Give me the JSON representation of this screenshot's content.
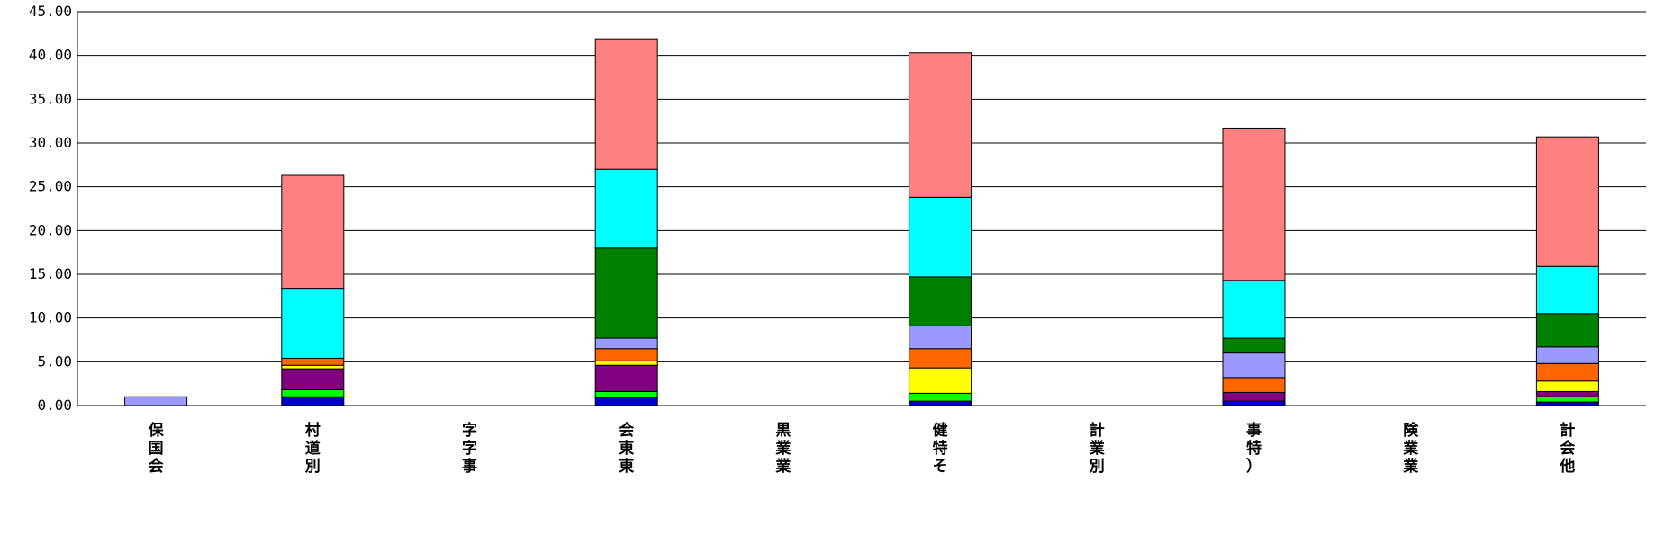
{
  "chart_data": {
    "type": "bar",
    "stacked": true,
    "title": "",
    "xlabel": "",
    "ylabel": "",
    "ylim": [
      0,
      45
    ],
    "yticks": [
      "0.00",
      "5.00",
      "10.00",
      "15.00",
      "20.00",
      "25.00",
      "30.00",
      "35.00",
      "40.00",
      "45.00"
    ],
    "grid": "horizontal",
    "legend": "none",
    "categories": [
      "保国会",
      "村道別",
      "字字事",
      "会東東",
      "黒業業",
      "健特そ",
      "計業別",
      "事特）",
      "険業業",
      "計会他"
    ],
    "series": [
      {
        "color": "#0000CC",
        "values": [
          0,
          1.0,
          0,
          0.9,
          0,
          0.5,
          0,
          0.5,
          0,
          0.4
        ]
      },
      {
        "color": "#00FF00",
        "values": [
          0,
          0.8,
          0,
          0.7,
          0,
          0.9,
          0,
          0,
          0,
          0.6
        ]
      },
      {
        "color": "#800080",
        "values": [
          0,
          2.4,
          0,
          3.0,
          0,
          0,
          0,
          1.0,
          0,
          0.6
        ]
      },
      {
        "color": "#FFFF00",
        "values": [
          0,
          0.4,
          0,
          0.5,
          0,
          2.9,
          0,
          0,
          0,
          1.2
        ]
      },
      {
        "color": "#FF6600",
        "values": [
          0,
          0.8,
          0,
          1.4,
          0,
          2.2,
          0,
          1.7,
          0,
          2.0
        ]
      },
      {
        "color": "#9999FF",
        "values": [
          1.0,
          0,
          0,
          1.2,
          0,
          2.6,
          0,
          2.8,
          0,
          1.9
        ]
      },
      {
        "color": "#008000",
        "values": [
          0,
          0,
          0,
          10.3,
          0,
          5.6,
          0,
          1.7,
          0,
          3.8
        ]
      },
      {
        "color": "#00FFFF",
        "values": [
          0,
          8.0,
          0,
          9.0,
          0,
          9.1,
          0,
          6.6,
          0,
          5.4
        ]
      },
      {
        "color": "#FF8080",
        "values": [
          0,
          12.9,
          0,
          14.9,
          0,
          16.5,
          0,
          17.4,
          0,
          14.8
        ]
      }
    ]
  }
}
